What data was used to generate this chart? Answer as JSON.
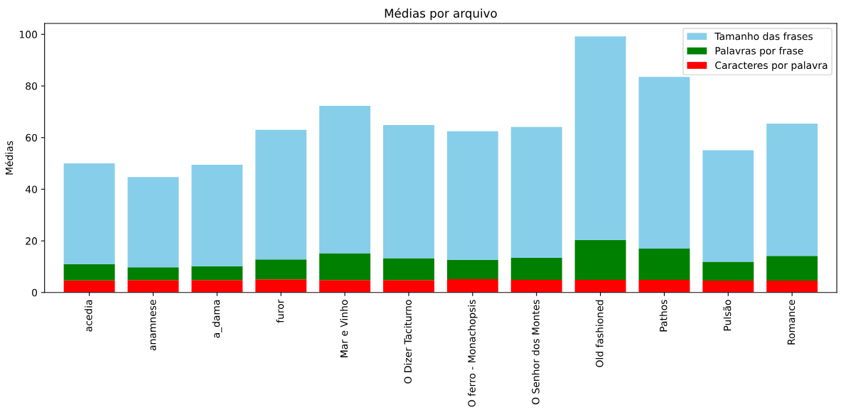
{
  "chart_data": {
    "type": "bar",
    "title": "Médias por arquivo",
    "ylabel": "Médias",
    "stacked": true,
    "categories": [
      "acedia",
      "anamnese",
      "a_dama",
      "furor",
      "Mar e Vinho",
      "O Dizer Taciturno",
      "O ferro - Monachopsis",
      "O Senhor dos Montes",
      "Old fashioned",
      "Pathos",
      "Pulsão",
      "Romance"
    ],
    "series": [
      {
        "name": "Caracteres por palavra",
        "color": "#ff0000",
        "values": [
          4.7,
          4.8,
          4.8,
          5.1,
          4.8,
          4.8,
          5.2,
          4.9,
          4.9,
          4.9,
          4.6,
          4.6
        ]
      },
      {
        "name": "Palavras por frase",
        "color": "#008000",
        "values": [
          6.3,
          5.0,
          5.4,
          7.7,
          10.4,
          8.5,
          7.5,
          8.5,
          15.5,
          12.1,
          7.3,
          9.6
        ]
      },
      {
        "name": "Tamanho das frases",
        "color": "#87ceeb",
        "values": [
          39.0,
          34.9,
          39.3,
          50.2,
          57.1,
          51.6,
          49.8,
          50.7,
          78.8,
          66.5,
          43.2,
          51.2
        ]
      }
    ],
    "ylim": [
      0,
      104.2
    ],
    "yticks": [
      0,
      20,
      40,
      60,
      80,
      100
    ],
    "legend": "top right",
    "grid": false
  }
}
